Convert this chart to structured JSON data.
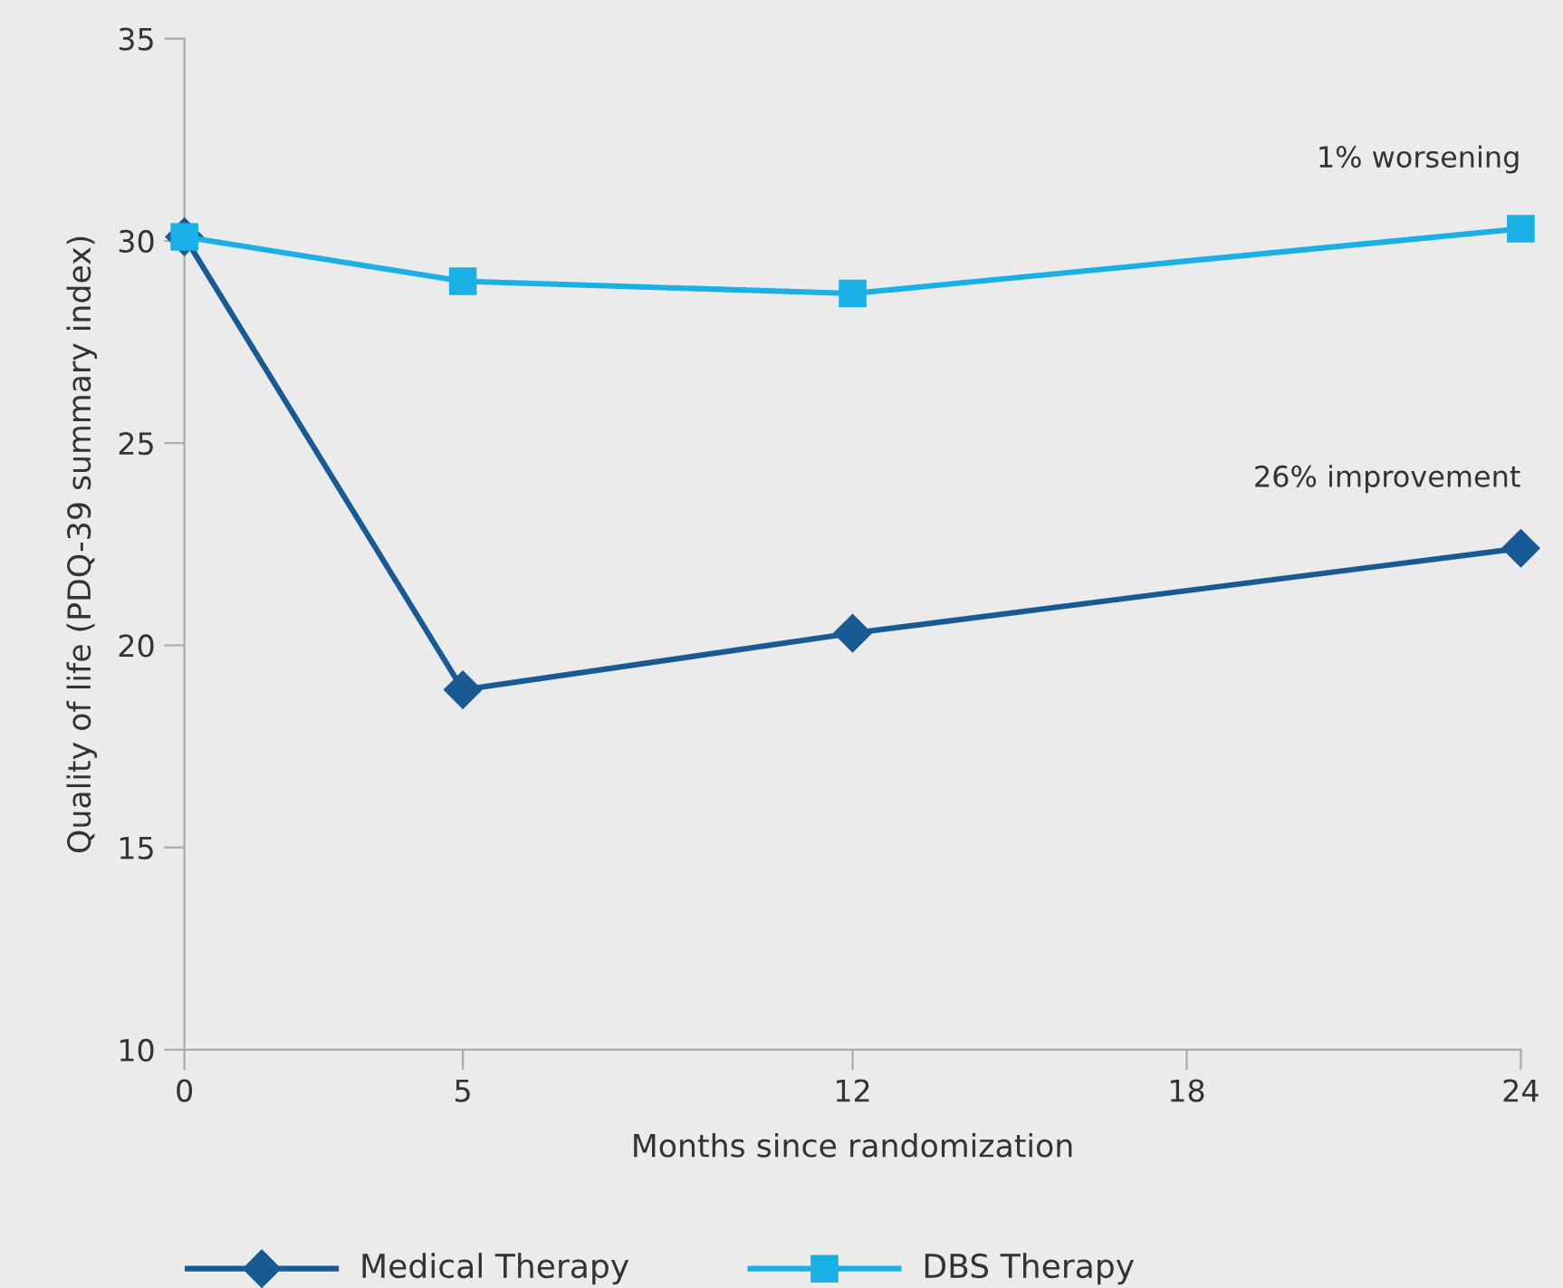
{
  "chart_data": {
    "type": "line",
    "xlabel": "Months since randomization",
    "ylabel": "Quality of life (PDQ-39 summary index)",
    "x": [
      0,
      5,
      12,
      24
    ],
    "series": [
      {
        "name": "Medical Therapy",
        "color": "#1a5a94",
        "values": [
          30.1,
          18.9,
          20.3,
          22.4
        ],
        "marker": "diamond"
      },
      {
        "name": "DBS Therapy",
        "color": "#1ab0e6",
        "values": [
          30.1,
          29.0,
          28.7,
          30.3
        ],
        "marker": "square"
      }
    ],
    "annotations": [
      {
        "text": "1% worsening",
        "x": 24,
        "y": 30.3
      },
      {
        "text": "26% improvement",
        "x": 24,
        "y": 22.4
      }
    ],
    "xlim": [
      0,
      24
    ],
    "xticks": [
      0,
      5,
      12,
      18,
      24
    ],
    "ylim": [
      10,
      35
    ],
    "yticks": [
      10,
      15,
      20,
      25,
      30,
      35
    ],
    "grid": false,
    "legend": "bottom",
    "line_style": "solid"
  }
}
